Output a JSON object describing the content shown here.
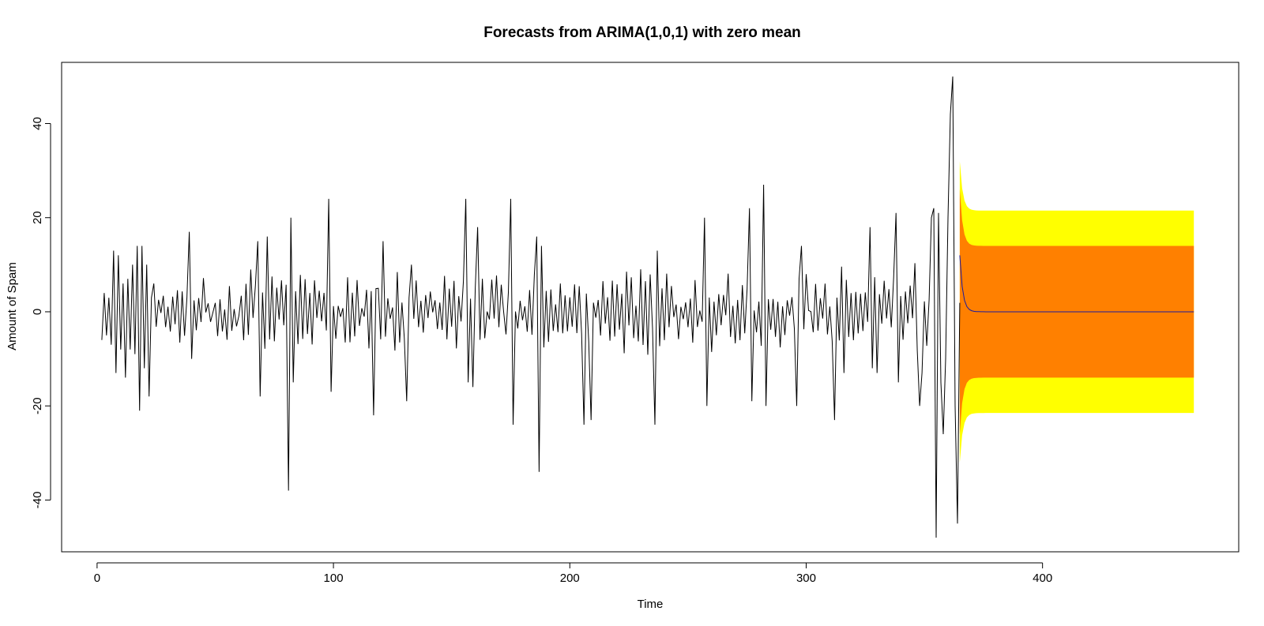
{
  "chart_data": {
    "type": "line",
    "title": "Forecasts from ARIMA(1,0,1) with zero mean",
    "xlabel": "Time",
    "ylabel": "Amount of Spam",
    "xlim": [
      -15,
      483
    ],
    "ylim": [
      -51,
      53
    ],
    "xticks": [
      0,
      100,
      200,
      300,
      400
    ],
    "yticks": [
      -40,
      -20,
      0,
      20,
      40
    ],
    "grid": false,
    "legend": "none",
    "colors": {
      "observed": "#000000",
      "forecast_mean": "#1a1aa0",
      "interval_80": "#ff8000",
      "interval_95": "#ffff00",
      "frame": "#000000"
    },
    "observed": {
      "start": 2,
      "end": 365,
      "keypoints": [
        [
          2,
          -6
        ],
        [
          3,
          4
        ],
        [
          4,
          -5
        ],
        [
          5,
          3
        ],
        [
          6,
          -7
        ],
        [
          7,
          13
        ],
        [
          8,
          -13
        ],
        [
          9,
          12
        ],
        [
          10,
          -8
        ],
        [
          11,
          6
        ],
        [
          12,
          -14
        ],
        [
          13,
          7
        ],
        [
          14,
          -8
        ],
        [
          15,
          10
        ],
        [
          16,
          -9
        ],
        [
          17,
          14
        ],
        [
          18,
          -21
        ],
        [
          19,
          14
        ],
        [
          20,
          -12
        ],
        [
          21,
          10
        ],
        [
          22,
          -18
        ],
        [
          23,
          3
        ],
        [
          24,
          6
        ],
        [
          39,
          17
        ],
        [
          40,
          -10
        ],
        [
          68,
          15
        ],
        [
          69,
          -18
        ],
        [
          72,
          16
        ],
        [
          81,
          -38
        ],
        [
          82,
          20
        ],
        [
          83,
          -15
        ],
        [
          98,
          24
        ],
        [
          99,
          -17
        ],
        [
          117,
          -22
        ],
        [
          119,
          5
        ],
        [
          121,
          15
        ],
        [
          131,
          -19
        ],
        [
          133,
          10
        ],
        [
          156,
          24
        ],
        [
          157,
          -15
        ],
        [
          159,
          -16
        ],
        [
          161,
          18
        ],
        [
          175,
          24
        ],
        [
          176,
          -24
        ],
        [
          186,
          16
        ],
        [
          187,
          -34
        ],
        [
          188,
          14
        ],
        [
          206,
          -24
        ],
        [
          209,
          -23
        ],
        [
          236,
          -24
        ],
        [
          237,
          13
        ],
        [
          257,
          20
        ],
        [
          258,
          -20
        ],
        [
          276,
          22
        ],
        [
          277,
          -19
        ],
        [
          282,
          27
        ],
        [
          283,
          -20
        ],
        [
          296,
          -20
        ],
        [
          298,
          14
        ],
        [
          312,
          -23
        ],
        [
          316,
          -13
        ],
        [
          327,
          18
        ],
        [
          328,
          -12
        ],
        [
          330,
          -13
        ],
        [
          338,
          21
        ],
        [
          339,
          -15
        ],
        [
          348,
          -20
        ],
        [
          349,
          -13
        ],
        [
          353,
          20
        ],
        [
          354,
          22
        ],
        [
          355,
          -48
        ],
        [
          356,
          21
        ],
        [
          357,
          -15
        ],
        [
          358,
          -26
        ],
        [
          359,
          -10
        ],
        [
          360,
          20
        ],
        [
          361,
          42
        ],
        [
          362,
          50
        ],
        [
          363,
          -20
        ],
        [
          364,
          -45
        ]
      ]
    },
    "forecast": {
      "start": 365,
      "end": 464,
      "mean_start": 12,
      "mean_level": 0,
      "decay": 0.45,
      "band_80": {
        "start": 26,
        "level": 14
      },
      "band_95": {
        "start": 32,
        "level": 21.5
      }
    }
  }
}
